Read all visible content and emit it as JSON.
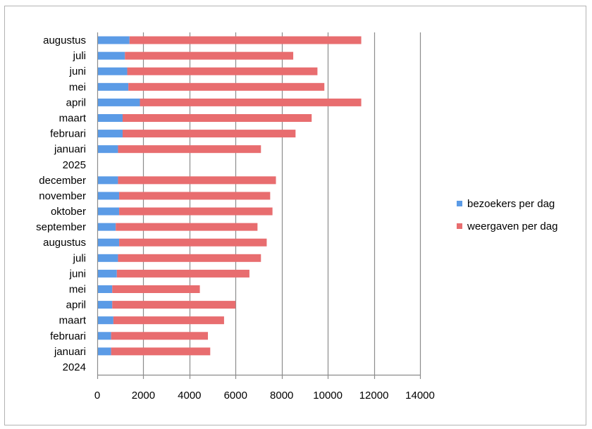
{
  "chart_data": {
    "type": "bar",
    "orientation": "horizontal",
    "stacked": true,
    "categories": [
      "2024",
      "januari",
      "februari",
      "maart",
      "april",
      "mei",
      "juni",
      "juli",
      "augustus",
      "september",
      "oktober",
      "november",
      "december",
      "2025",
      "januari",
      "februari",
      "maart",
      "april",
      "mei",
      "juni",
      "juli",
      "augustus"
    ],
    "series": [
      {
        "name": "bezoekers per dag",
        "color": "#5b9be6",
        "values": [
          null,
          600,
          600,
          700,
          650,
          650,
          850,
          900,
          950,
          800,
          950,
          950,
          900,
          null,
          900,
          1100,
          1100,
          1850,
          1350,
          1300,
          1200,
          1400
        ]
      },
      {
        "name": "weergaven per dag",
        "color": "#e86d6f",
        "values": [
          null,
          4300,
          4200,
          4800,
          5350,
          3800,
          5750,
          6200,
          6400,
          6150,
          6650,
          6550,
          6850,
          null,
          6200,
          7500,
          8200,
          9600,
          8500,
          8250,
          7300,
          10050
        ]
      }
    ],
    "xlim": [
      0,
      14000
    ],
    "xticks": [
      "0",
      "2000",
      "4000",
      "6000",
      "8000",
      "10000",
      "12000",
      "14000"
    ],
    "grid": "vertical",
    "legend": "right"
  }
}
